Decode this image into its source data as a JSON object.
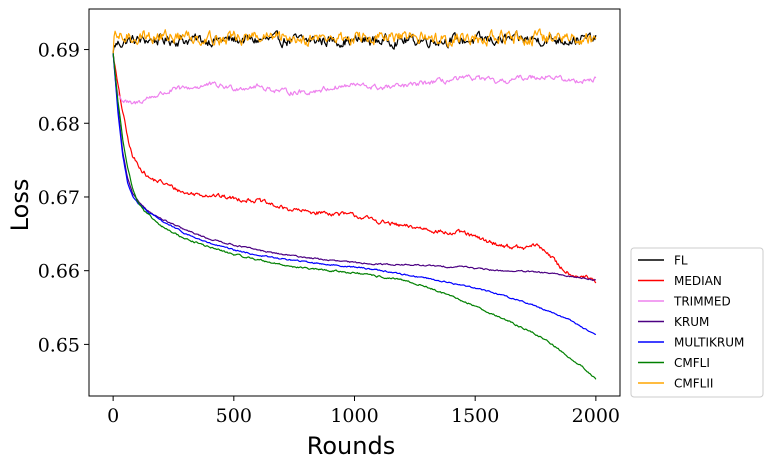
{
  "chart_data": {
    "type": "line",
    "title": "",
    "xlabel": "Rounds",
    "ylabel": "Loss",
    "xlim": [
      -100,
      2100
    ],
    "ylim": [
      0.643,
      0.6955
    ],
    "x_ticks": [
      0,
      500,
      1000,
      1500,
      2000
    ],
    "x_tick_labels": [
      "0",
      "500",
      "1000",
      "1500",
      "2000"
    ],
    "y_ticks": [
      0.65,
      0.66,
      0.67,
      0.68,
      0.69
    ],
    "y_tick_labels": [
      "0.65",
      "0.66",
      "0.67",
      "0.68",
      "0.69"
    ],
    "grid": false,
    "legend_position": "outside-right-bottom",
    "series": [
      {
        "name": "FL",
        "color": "#000000",
        "noise": 0.0006,
        "points": [
          [
            0,
            0.6895
          ],
          [
            5,
            0.6905
          ],
          [
            20,
            0.6908
          ],
          [
            60,
            0.6912
          ],
          [
            150,
            0.6913
          ],
          [
            500,
            0.6913
          ],
          [
            1000,
            0.6912
          ],
          [
            1500,
            0.6913
          ],
          [
            2000,
            0.6914
          ]
        ]
      },
      {
        "name": "MEDIAN",
        "color": "#ff0000",
        "noise": 0.00025,
        "points": [
          [
            0,
            0.6895
          ],
          [
            20,
            0.685
          ],
          [
            40,
            0.6815
          ],
          [
            60,
            0.678
          ],
          [
            80,
            0.6755
          ],
          [
            100,
            0.6745
          ],
          [
            150,
            0.6725
          ],
          [
            200,
            0.672
          ],
          [
            300,
            0.6705
          ],
          [
            400,
            0.6703
          ],
          [
            500,
            0.6698
          ],
          [
            600,
            0.6695
          ],
          [
            700,
            0.6685
          ],
          [
            800,
            0.668
          ],
          [
            900,
            0.6678
          ],
          [
            1000,
            0.6675
          ],
          [
            1100,
            0.6667
          ],
          [
            1200,
            0.666
          ],
          [
            1300,
            0.6657
          ],
          [
            1400,
            0.665
          ],
          [
            1450,
            0.6652
          ],
          [
            1500,
            0.6645
          ],
          [
            1600,
            0.6635
          ],
          [
            1700,
            0.663
          ],
          [
            1750,
            0.6635
          ],
          [
            1800,
            0.6625
          ],
          [
            1850,
            0.6605
          ],
          [
            1900,
            0.6595
          ],
          [
            1950,
            0.6592
          ],
          [
            2000,
            0.6585
          ]
        ]
      },
      {
        "name": "TRIMMED",
        "color": "#ee82ee",
        "noise": 0.0003,
        "points": [
          [
            0,
            0.6895
          ],
          [
            15,
            0.6845
          ],
          [
            40,
            0.683
          ],
          [
            80,
            0.6825
          ],
          [
            150,
            0.6835
          ],
          [
            250,
            0.6845
          ],
          [
            400,
            0.6852
          ],
          [
            500,
            0.6848
          ],
          [
            600,
            0.685
          ],
          [
            700,
            0.6843
          ],
          [
            800,
            0.6842
          ],
          [
            900,
            0.6848
          ],
          [
            1000,
            0.6852
          ],
          [
            1100,
            0.6848
          ],
          [
            1200,
            0.685
          ],
          [
            1300,
            0.6855
          ],
          [
            1400,
            0.6858
          ],
          [
            1500,
            0.6862
          ],
          [
            1600,
            0.6855
          ],
          [
            1700,
            0.6862
          ],
          [
            1800,
            0.6864
          ],
          [
            1900,
            0.6857
          ],
          [
            2000,
            0.686
          ]
        ]
      },
      {
        "name": "KRUM",
        "color": "#4b0082",
        "noise": 8e-05,
        "points": [
          [
            0,
            0.6895
          ],
          [
            20,
            0.682
          ],
          [
            40,
            0.676
          ],
          [
            60,
            0.6725
          ],
          [
            80,
            0.6705
          ],
          [
            100,
            0.6695
          ],
          [
            150,
            0.668
          ],
          [
            200,
            0.667
          ],
          [
            300,
            0.6655
          ],
          [
            400,
            0.6643
          ],
          [
            500,
            0.6635
          ],
          [
            600,
            0.6628
          ],
          [
            700,
            0.6622
          ],
          [
            800,
            0.6618
          ],
          [
            900,
            0.6614
          ],
          [
            1000,
            0.6611
          ],
          [
            1100,
            0.6609
          ],
          [
            1200,
            0.6608
          ],
          [
            1300,
            0.6607
          ],
          [
            1400,
            0.6605
          ],
          [
            1460,
            0.6606
          ],
          [
            1500,
            0.6603
          ],
          [
            1600,
            0.66
          ],
          [
            1700,
            0.6599
          ],
          [
            1800,
            0.6597
          ],
          [
            1900,
            0.6592
          ],
          [
            1950,
            0.659
          ],
          [
            2000,
            0.6587
          ]
        ]
      },
      {
        "name": "MULTIKRUM",
        "color": "#0000ff",
        "noise": 8e-05,
        "points": [
          [
            0,
            0.6895
          ],
          [
            20,
            0.6815
          ],
          [
            40,
            0.6755
          ],
          [
            60,
            0.672
          ],
          [
            80,
            0.6702
          ],
          [
            100,
            0.6692
          ],
          [
            150,
            0.6678
          ],
          [
            200,
            0.6668
          ],
          [
            300,
            0.665
          ],
          [
            400,
            0.6637
          ],
          [
            500,
            0.6628
          ],
          [
            600,
            0.6621
          ],
          [
            700,
            0.6616
          ],
          [
            800,
            0.6612
          ],
          [
            900,
            0.6608
          ],
          [
            1000,
            0.6605
          ],
          [
            1100,
            0.6601
          ],
          [
            1200,
            0.6595
          ],
          [
            1300,
            0.659
          ],
          [
            1400,
            0.6583
          ],
          [
            1500,
            0.6577
          ],
          [
            1600,
            0.6568
          ],
          [
            1700,
            0.6558
          ],
          [
            1800,
            0.6546
          ],
          [
            1900,
            0.6532
          ],
          [
            2000,
            0.6512
          ]
        ]
      },
      {
        "name": "CMFLI",
        "color": "#008000",
        "noise": 0.0001,
        "points": [
          [
            0,
            0.6895
          ],
          [
            20,
            0.683
          ],
          [
            40,
            0.6778
          ],
          [
            60,
            0.6742
          ],
          [
            80,
            0.6712
          ],
          [
            100,
            0.6695
          ],
          [
            130,
            0.668
          ],
          [
            200,
            0.666
          ],
          [
            300,
            0.6643
          ],
          [
            400,
            0.6632
          ],
          [
            500,
            0.6622
          ],
          [
            600,
            0.6615
          ],
          [
            700,
            0.6608
          ],
          [
            800,
            0.6603
          ],
          [
            900,
            0.66
          ],
          [
            1000,
            0.6597
          ],
          [
            1100,
            0.6592
          ],
          [
            1200,
            0.6587
          ],
          [
            1300,
            0.6578
          ],
          [
            1400,
            0.6565
          ],
          [
            1500,
            0.6552
          ],
          [
            1600,
            0.6537
          ],
          [
            1700,
            0.6522
          ],
          [
            1800,
            0.6505
          ],
          [
            1850,
            0.6492
          ],
          [
            1900,
            0.648
          ],
          [
            1950,
            0.6468
          ],
          [
            2000,
            0.6453
          ]
        ]
      },
      {
        "name": "CMFLII",
        "color": "#ffa500",
        "noise": 0.0007,
        "points": [
          [
            0,
            0.6895
          ],
          [
            5,
            0.6915
          ],
          [
            20,
            0.6915
          ],
          [
            100,
            0.6918
          ],
          [
            500,
            0.6916
          ],
          [
            1000,
            0.6915
          ],
          [
            1500,
            0.6916
          ],
          [
            2000,
            0.6915
          ]
        ]
      }
    ]
  }
}
